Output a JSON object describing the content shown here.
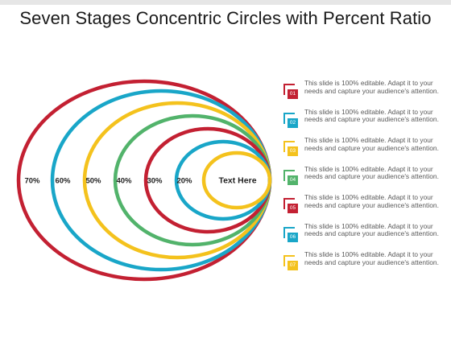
{
  "title": "Seven Stages Concentric Circles with Percent Ratio",
  "center_label": "Text Here",
  "stages": [
    {
      "label": "20%",
      "color": "#19a6c8"
    },
    {
      "label": "30%",
      "color": "#c32032"
    },
    {
      "label": "40%",
      "color": "#52b36b"
    },
    {
      "label": "50%",
      "color": "#f4c21d"
    },
    {
      "label": "60%",
      "color": "#19a6c8"
    },
    {
      "label": "70%",
      "color": "#c32032"
    }
  ],
  "center_color": "#f4c21d",
  "legend": [
    {
      "number": "01",
      "color": "#c32032",
      "text": "This slide is 100% editable. Adapt it to your needs and capture your audience's attention."
    },
    {
      "number": "02",
      "color": "#19a6c8",
      "text": "This slide is 100% editable. Adapt it to your needs and capture your audience's attention."
    },
    {
      "number": "03",
      "color": "#f4c21d",
      "text": "This slide is 100% editable. Adapt it to your needs and capture your audience's attention."
    },
    {
      "number": "04",
      "color": "#52b36b",
      "text": "This slide is 100% editable. Adapt it to your needs and capture your audience's attention."
    },
    {
      "number": "05",
      "color": "#c32032",
      "text": "This slide is 100% editable. Adapt it to your needs and capture your audience's attention."
    },
    {
      "number": "06",
      "color": "#19a6c8",
      "text": "This slide is 100% editable. Adapt it to your needs and capture your audience's attention."
    },
    {
      "number": "07",
      "color": "#f4c21d",
      "text": "This slide is 100% editable. Adapt it to your needs and capture your audience's attention."
    }
  ]
}
